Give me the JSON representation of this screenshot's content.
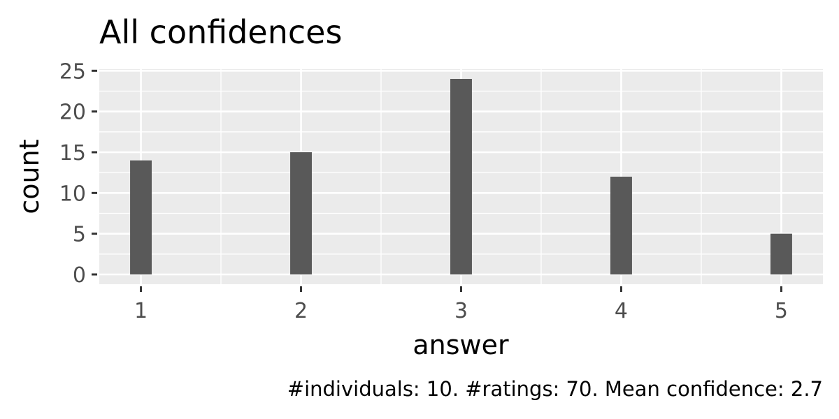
{
  "chart_data": {
    "type": "bar",
    "title": "All confidences",
    "xlabel": "answer",
    "ylabel": "count",
    "caption": "#individuals: 10. #ratings: 70. Mean confidence: 2.7",
    "x": [
      1,
      2,
      3,
      4,
      5
    ],
    "x_ticks": [
      "1",
      "2",
      "3",
      "4",
      "5"
    ],
    "values": [
      14,
      15,
      24,
      12,
      5
    ],
    "xlim": [
      0.74,
      5.26
    ],
    "ylim": [
      -1.2,
      25.2
    ],
    "y_ticks": [
      0,
      5,
      10,
      15,
      20,
      25
    ],
    "y_tick_labels": [
      "0",
      "5",
      "10",
      "15",
      "20",
      "25"
    ],
    "grid": true,
    "colors": {
      "bar": "#595959",
      "panel_background": "#ebebeb",
      "grid": "#ffffff",
      "tick_text": "#4d4d4d",
      "tick_mark": "#333333"
    }
  }
}
